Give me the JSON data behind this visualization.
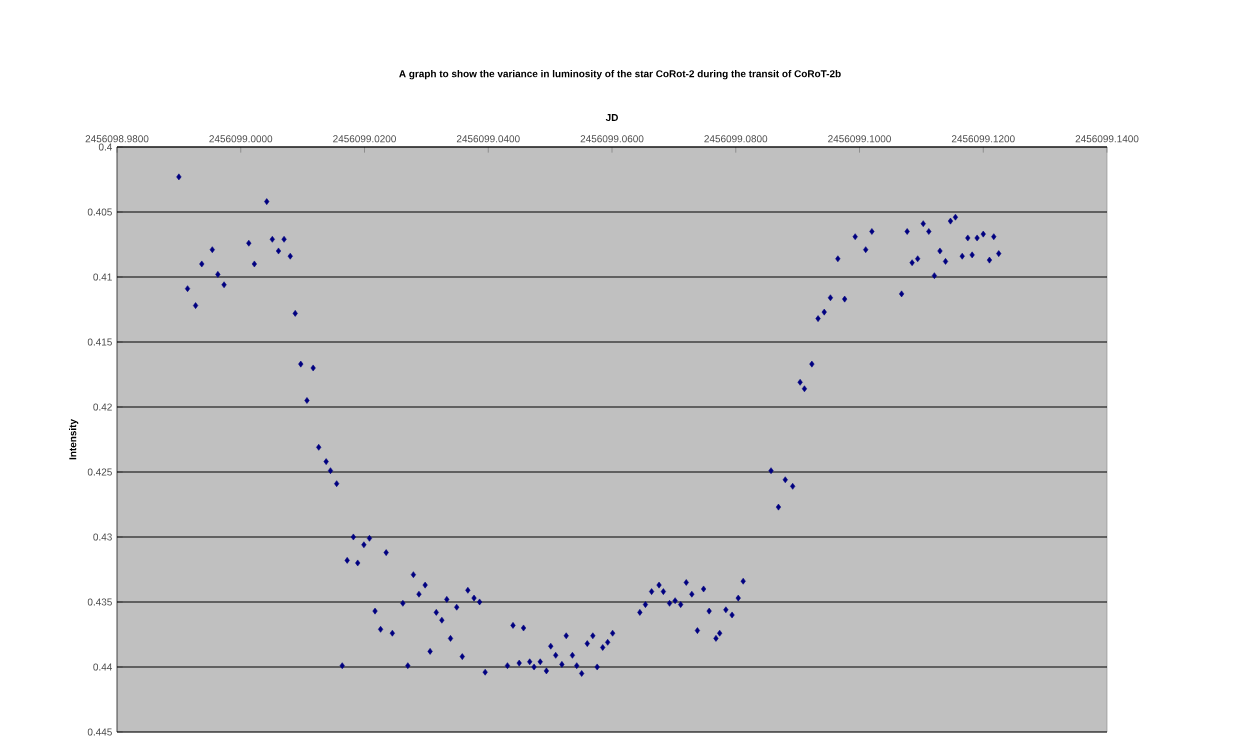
{
  "chart_data": {
    "type": "scatter",
    "title": "A graph to show the variance in luminosity of the star CoRot-2 during the transit of CoRoT-2b",
    "xlabel": "JD",
    "ylabel": "Intensity",
    "xlim": [
      2456098.98,
      2456099.14
    ],
    "xticks": [
      {
        "value": 2456098.98,
        "label": "2456098.9800"
      },
      {
        "value": 2456099.0,
        "label": "2456099.0000"
      },
      {
        "value": 2456099.02,
        "label": "2456099.0200"
      },
      {
        "value": 2456099.04,
        "label": "2456099.0400"
      },
      {
        "value": 2456099.06,
        "label": "2456099.0600"
      },
      {
        "value": 2456099.08,
        "label": "2456099.0800"
      },
      {
        "value": 2456099.1,
        "label": "2456099.1000"
      },
      {
        "value": 2456099.12,
        "label": "2456099.1200"
      },
      {
        "value": 2456099.14,
        "label": "2456099.1400"
      }
    ],
    "ylim": [
      0.445,
      0.4
    ],
    "yticks": [
      0.4,
      0.405,
      0.41,
      0.415,
      0.42,
      0.425,
      0.43,
      0.435,
      0.44,
      0.445
    ],
    "grid": "y",
    "marker": "diamond",
    "color": "#000080",
    "x": [
      2456098.99,
      2456098.9914,
      2456098.9927,
      2456098.9937,
      2456098.9954,
      2456098.9963,
      2456098.9973,
      2456099.0013,
      2456099.0022,
      2456099.0042,
      2456099.0051,
      2456099.0061,
      2456099.007,
      2456099.008,
      2456099.0088,
      2456099.0097,
      2456099.0107,
      2456099.0117,
      2456099.0126,
      2456099.0138,
      2456099.0145,
      2456099.0155,
      2456099.0164,
      2456099.0172,
      2456099.0182,
      2456099.0189,
      2456099.0199,
      2456099.0208,
      2456099.0217,
      2456099.0226,
      2456099.0235,
      2456099.0245,
      2456099.0262,
      2456099.027,
      2456099.0279,
      2456099.0288,
      2456099.0298,
      2456099.0306,
      2456099.0316,
      2456099.0325,
      2456099.0333,
      2456099.0339,
      2456099.0349,
      2456099.0358,
      2456099.0367,
      2456099.0377,
      2456099.0386,
      2456099.0395,
      2456099.0431,
      2456099.044,
      2456099.045,
      2456099.0457,
      2456099.0467,
      2456099.0474,
      2456099.0484,
      2456099.0494,
      2456099.0501,
      2456099.0509,
      2456099.0519,
      2456099.0526,
      2456099.0536,
      2456099.0543,
      2456099.0551,
      2456099.056,
      2456099.0569,
      2456099.0576,
      2456099.0585,
      2456099.0593,
      2456099.0601,
      2456099.0645,
      2456099.0654,
      2456099.0664,
      2456099.0676,
      2456099.0683,
      2456099.0693,
      2456099.0702,
      2456099.0711,
      2456099.072,
      2456099.0729,
      2456099.0738,
      2456099.0748,
      2456099.0757,
      2456099.0768,
      2456099.0774,
      2456099.0784,
      2456099.0794,
      2456099.0804,
      2456099.0812,
      2456099.0857,
      2456099.0869,
      2456099.088,
      2456099.0892,
      2456099.0904,
      2456099.0911,
      2456099.0923,
      2456099.0933,
      2456099.0943,
      2456099.0953,
      2456099.0965,
      2456099.0976,
      2456099.0993,
      2456099.101,
      2456099.102,
      2456099.1068,
      2456099.1077,
      2456099.1085,
      2456099.1094,
      2456099.1103,
      2456099.1112,
      2456099.1121,
      2456099.113,
      2456099.1139,
      2456099.1147,
      2456099.1155,
      2456099.1166,
      2456099.1175,
      2456099.1182,
      2456099.119,
      2456099.12,
      2456099.121,
      2456099.1217,
      2456099.1225
    ],
    "values": [
      0.4023,
      0.4109,
      0.4122,
      0.409,
      0.4079,
      0.4098,
      0.4106,
      0.4074,
      0.409,
      0.4042,
      0.4071,
      0.408,
      0.4071,
      0.4084,
      0.4128,
      0.4167,
      0.4195,
      0.417,
      0.4231,
      0.4242,
      0.4249,
      0.4259,
      0.4399,
      0.4318,
      0.43,
      0.432,
      0.4306,
      0.4301,
      0.4357,
      0.4371,
      0.4312,
      0.4374,
      0.4351,
      0.4399,
      0.4329,
      0.4344,
      0.4337,
      0.4388,
      0.4358,
      0.4364,
      0.4348,
      0.4378,
      0.4354,
      0.4392,
      0.4341,
      0.4347,
      0.435,
      0.4404,
      0.4399,
      0.4368,
      0.4397,
      0.437,
      0.4396,
      0.44,
      0.4396,
      0.4403,
      0.4384,
      0.4391,
      0.4398,
      0.4376,
      0.4391,
      0.4399,
      0.4405,
      0.4382,
      0.4376,
      0.44,
      0.4385,
      0.4381,
      0.4374,
      0.4358,
      0.4352,
      0.4342,
      0.4337,
      0.4342,
      0.4351,
      0.4349,
      0.4352,
      0.4335,
      0.4344,
      0.4372,
      0.434,
      0.4357,
      0.4378,
      0.4374,
      0.4356,
      0.436,
      0.4347,
      0.4334,
      0.4249,
      0.4277,
      0.4256,
      0.4261,
      0.4181,
      0.4186,
      0.4167,
      0.4132,
      0.4127,
      0.4116,
      0.4086,
      0.4117,
      0.4069,
      0.4079,
      0.4065,
      0.4113,
      0.4065,
      0.4089,
      0.4086,
      0.4059,
      0.4065,
      0.4099,
      0.408,
      0.4088,
      0.4057,
      0.4054,
      0.4084,
      0.407,
      0.4083,
      0.407,
      0.4067,
      0.4087,
      0.4069,
      0.4082
    ]
  }
}
